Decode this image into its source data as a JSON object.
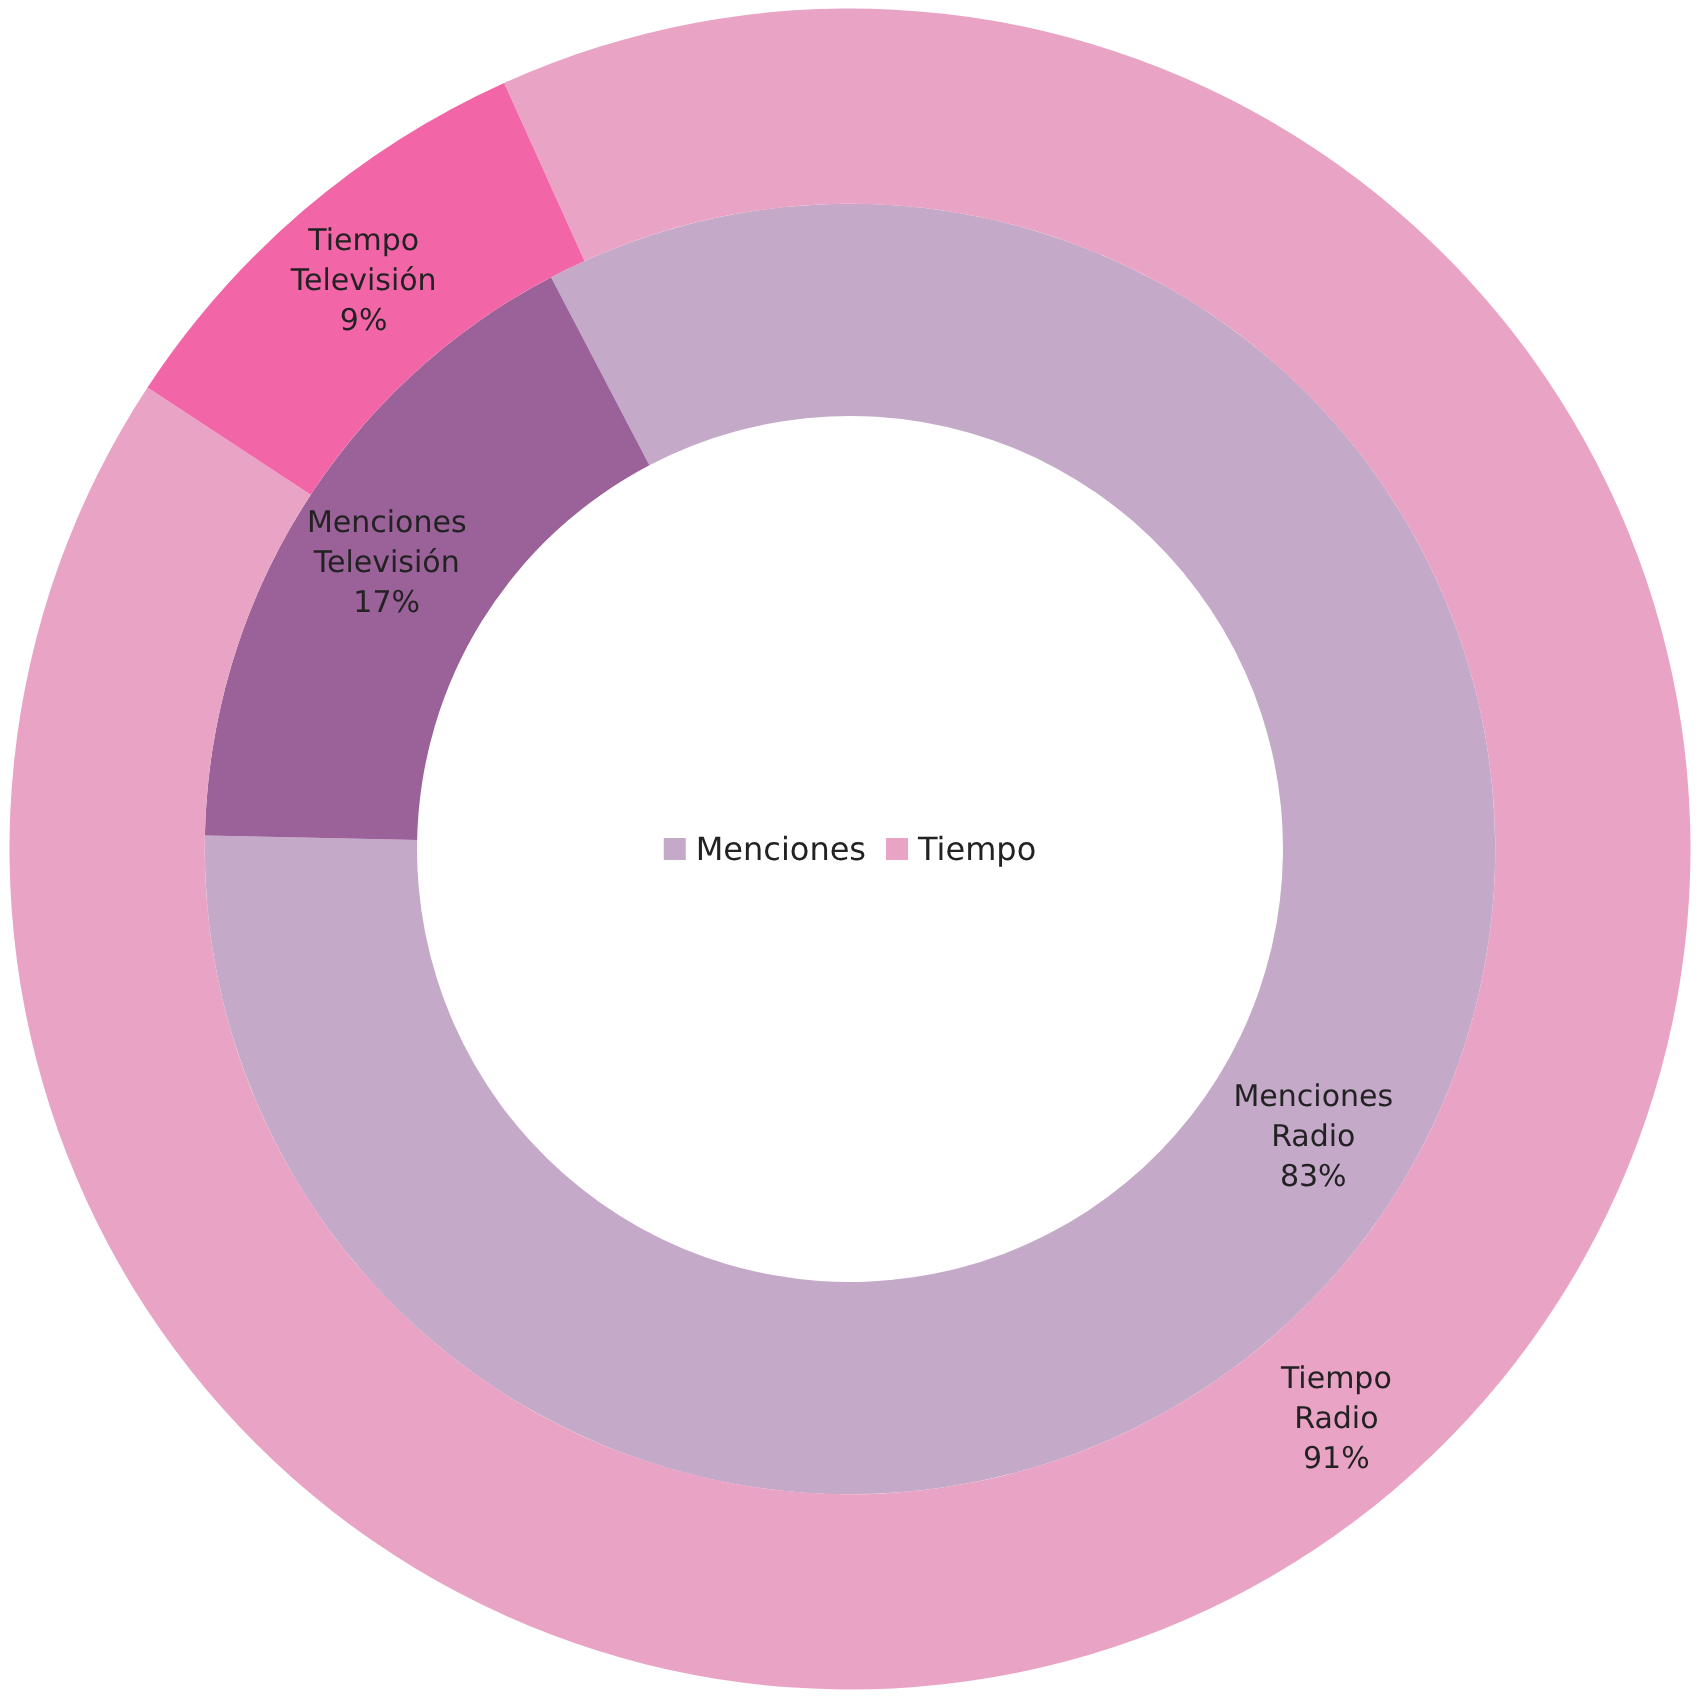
{
  "chart_data": {
    "type": "donut",
    "categories": [
      "Radio",
      "Televisión"
    ],
    "series": [
      {
        "name": "Menciones",
        "color": "#c5a9c9",
        "colors": [
          "#c5a9c9",
          "#9b6199"
        ],
        "values": [
          83,
          17
        ],
        "value_labels": [
          "83%",
          "17%"
        ]
      },
      {
        "name": "Tiempo",
        "color": "#e9a3c4",
        "colors": [
          "#e9a3c4",
          "#f266a8"
        ],
        "values": [
          91,
          9
        ],
        "value_labels": [
          "91%",
          "9%"
        ]
      }
    ],
    "legend": "center"
  }
}
